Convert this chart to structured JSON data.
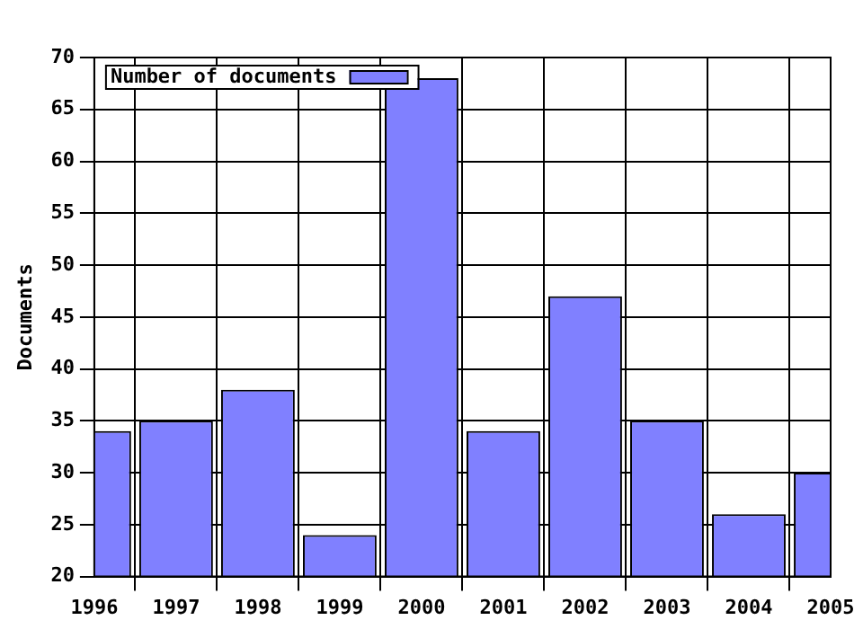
{
  "chart_data": {
    "type": "bar",
    "ylabel": "Documents",
    "x": [
      1996,
      1997,
      1998,
      1999,
      2000,
      2001,
      2002,
      2003,
      2004,
      2005
    ],
    "series": [
      {
        "name": "Number of documents",
        "color": "#8080ff",
        "values": [
          34,
          35,
          38,
          24,
          68,
          34,
          47,
          35,
          26,
          30
        ]
      }
    ],
    "xlim": [
      1996,
      2005
    ],
    "xticks": [
      1996,
      1997,
      1998,
      1999,
      2000,
      2001,
      2002,
      2003,
      2004,
      2005
    ],
    "ylim": [
      20,
      70
    ],
    "yticks": [
      20,
      25,
      30,
      35,
      40,
      45,
      50,
      55,
      60,
      65,
      70
    ],
    "grid": true,
    "legend": "top left"
  }
}
